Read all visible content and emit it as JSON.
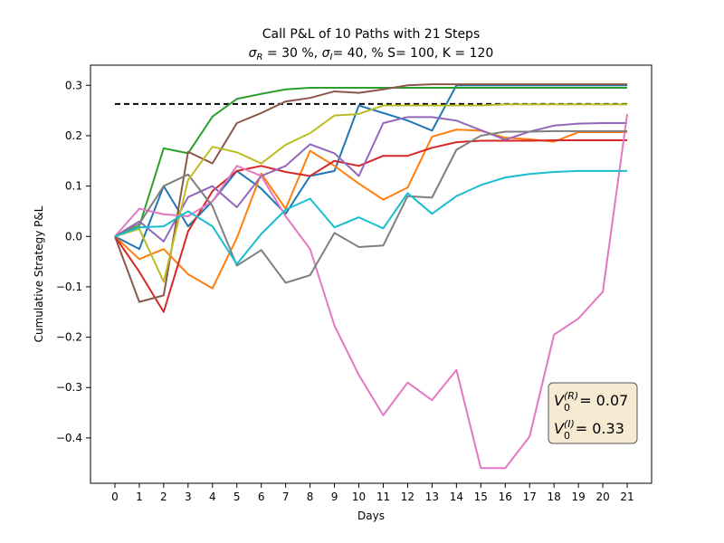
{
  "chart_data": {
    "type": "line",
    "title": "Call P&L of 10 Paths with 21 Steps",
    "subtitle": {
      "sigma_r": "30 %",
      "sigma_i": "40, %",
      "rest": "S= 100, K = 120"
    },
    "xlabel": "Days",
    "ylabel": "Cumulative Strategy P&L",
    "xlim": [
      -1,
      22
    ],
    "ylim": [
      -0.49,
      0.34
    ],
    "x": [
      0,
      1,
      2,
      3,
      4,
      5,
      6,
      7,
      8,
      9,
      10,
      11,
      12,
      13,
      14,
      15,
      16,
      17,
      18,
      19,
      20,
      21
    ],
    "x_ticks": [
      0,
      1,
      2,
      3,
      4,
      5,
      6,
      7,
      8,
      9,
      10,
      11,
      12,
      13,
      14,
      15,
      16,
      17,
      18,
      19,
      20,
      21
    ],
    "y_ticks": [
      -0.4,
      -0.3,
      -0.2,
      -0.1,
      0.0,
      0.1,
      0.2,
      0.3
    ],
    "y_tick_labels": [
      "−0.4",
      "−0.3",
      "−0.2",
      "−0.1",
      "0.0",
      "0.1",
      "0.2",
      "0.3"
    ],
    "reference_line": {
      "y": 0.263,
      "style": "dashed",
      "color": "#000000"
    },
    "grid": false,
    "series": [
      {
        "color": "#1f77b4",
        "values": [
          0,
          -0.025,
          0.1,
          0.02,
          0.07,
          0.13,
          0.095,
          0.045,
          0.12,
          0.13,
          0.26,
          0.245,
          0.23,
          0.21,
          0.3,
          0.3,
          0.3,
          0.3,
          0.3,
          0.3,
          0.3,
          0.3
        ]
      },
      {
        "color": "#ff7f0e",
        "values": [
          0,
          -0.045,
          -0.025,
          -0.075,
          -0.103,
          -0.003,
          0.125,
          0.055,
          0.17,
          0.14,
          0.105,
          0.073,
          0.097,
          0.198,
          0.212,
          0.21,
          0.196,
          0.193,
          0.188,
          0.207,
          0.207,
          0.207
        ]
      },
      {
        "color": "#2ca02c",
        "values": [
          0,
          0.02,
          0.175,
          0.165,
          0.238,
          0.273,
          0.283,
          0.292,
          0.295,
          0.295,
          0.295,
          0.295,
          0.295,
          0.295,
          0.295,
          0.295,
          0.295,
          0.295,
          0.295,
          0.295,
          0.295,
          0.295
        ]
      },
      {
        "color": "#d62728",
        "values": [
          0,
          -0.07,
          -0.15,
          0.01,
          0.09,
          0.13,
          0.14,
          0.128,
          0.12,
          0.15,
          0.14,
          0.16,
          0.16,
          0.176,
          0.187,
          0.19,
          0.19,
          0.19,
          0.191,
          0.191,
          0.191,
          0.191
        ]
      },
      {
        "color": "#9467bd",
        "values": [
          0,
          0.03,
          -0.01,
          0.078,
          0.1,
          0.058,
          0.12,
          0.14,
          0.183,
          0.165,
          0.12,
          0.225,
          0.237,
          0.237,
          0.23,
          0.211,
          0.192,
          0.208,
          0.22,
          0.224,
          0.225,
          0.225
        ]
      },
      {
        "color": "#8c564b",
        "values": [
          0,
          -0.13,
          -0.117,
          0.168,
          0.145,
          0.225,
          0.245,
          0.268,
          0.275,
          0.288,
          0.285,
          0.292,
          0.3,
          0.302,
          0.302,
          0.302,
          0.302,
          0.302,
          0.302,
          0.302,
          0.302,
          0.302
        ]
      },
      {
        "color": "#e377c2",
        "values": [
          0,
          0.055,
          0.044,
          0.04,
          0.07,
          0.14,
          0.12,
          0.04,
          -0.025,
          -0.177,
          -0.275,
          -0.355,
          -0.29,
          -0.325,
          -0.265,
          -0.46,
          -0.46,
          -0.397,
          -0.195,
          -0.163,
          -0.11,
          0.243
        ]
      },
      {
        "color": "#7f7f7f",
        "values": [
          0,
          0.025,
          0.1,
          0.123,
          0.06,
          -0.058,
          -0.027,
          -0.092,
          -0.077,
          0.007,
          -0.021,
          -0.018,
          0.08,
          0.077,
          0.172,
          0.2,
          0.208,
          0.208,
          0.209,
          0.209,
          0.209,
          0.209
        ]
      },
      {
        "color": "#bcbd22",
        "values": [
          0,
          0.015,
          -0.09,
          0.112,
          0.178,
          0.167,
          0.145,
          0.182,
          0.205,
          0.24,
          0.243,
          0.26,
          0.26,
          0.26,
          0.26,
          0.26,
          0.262,
          0.262,
          0.262,
          0.262,
          0.262,
          0.262
        ]
      },
      {
        "color": "#17becf",
        "values": [
          0,
          0.018,
          0.02,
          0.05,
          0.02,
          -0.055,
          0.005,
          0.053,
          0.075,
          0.018,
          0.038,
          0.016,
          0.086,
          0.045,
          0.08,
          0.102,
          0.117,
          0.124,
          0.128,
          0.13,
          0.13,
          0.13
        ]
      }
    ],
    "annotation": {
      "line1_base": "V",
      "line1_sub": "0",
      "line1_sup": "(R)",
      "line1_value": "= 0.07",
      "line2_base": "V",
      "line2_sub": "0",
      "line2_sup": "(I)",
      "line2_value": "= 0.33",
      "box_fill": "#f7ead3",
      "box_stroke": "#555555",
      "placement": "bottom-right"
    }
  }
}
